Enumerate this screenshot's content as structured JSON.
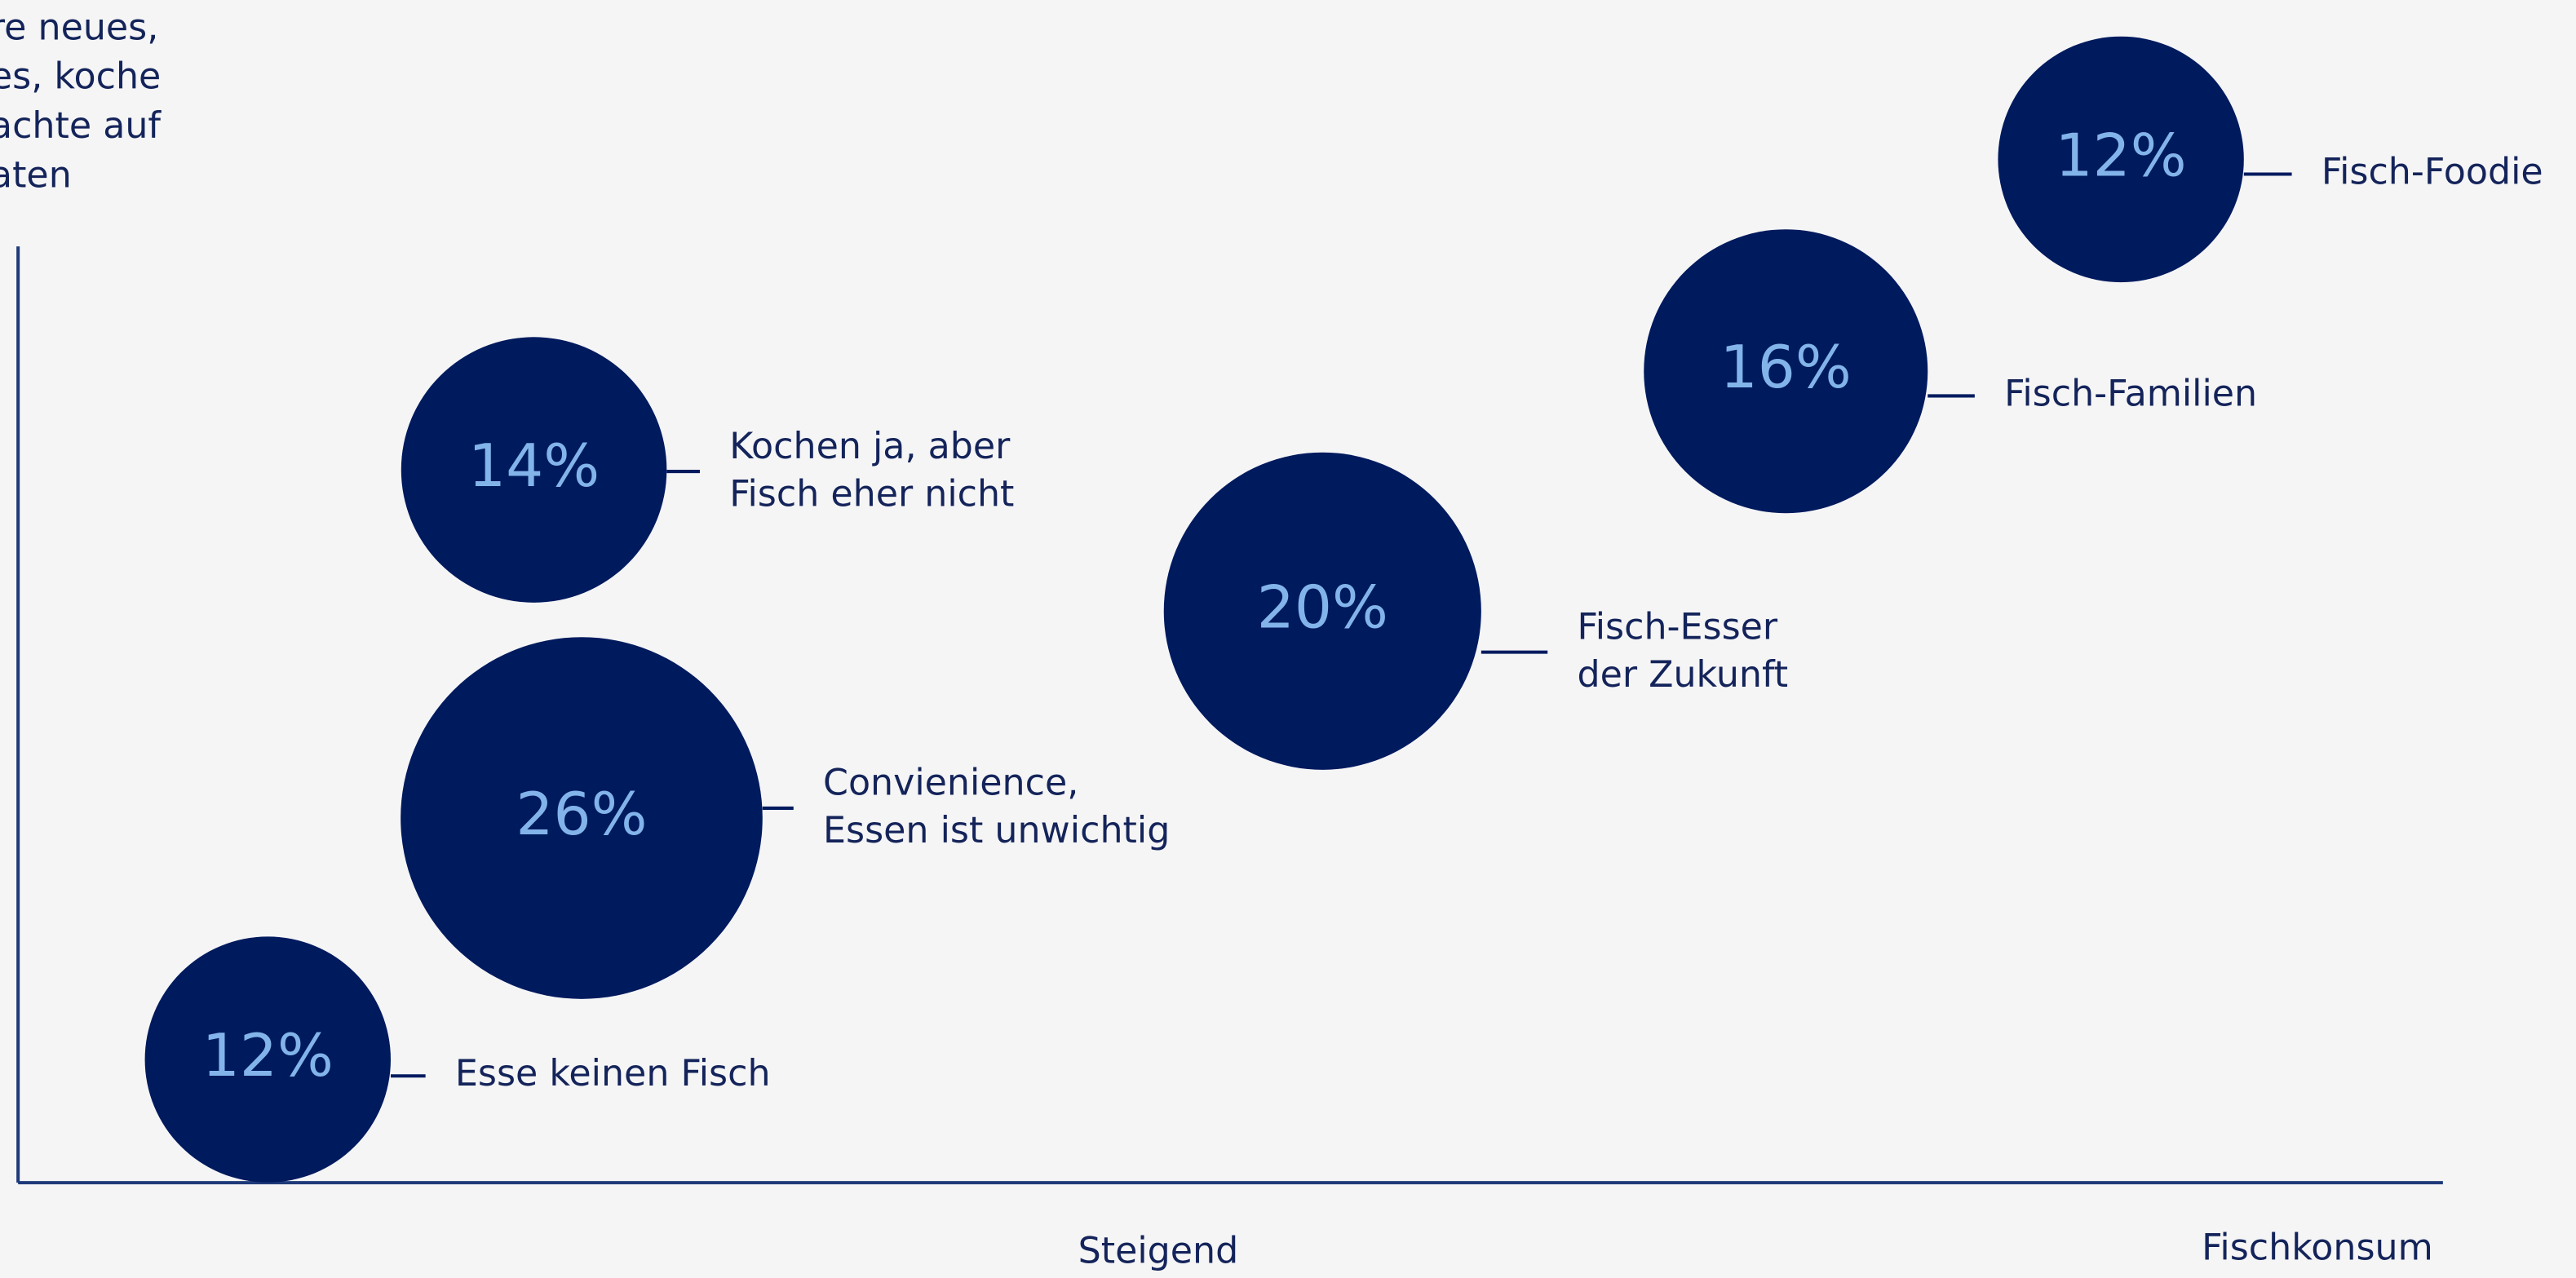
{
  "chart_data": {
    "type": "bubble",
    "corner_text": [
      "re neues,",
      "es, koche",
      "achte auf",
      "aten"
    ],
    "x_label_center": "Steigend",
    "x_label_end": "Fischkonsum",
    "color": "#001a5e",
    "series": [
      {
        "name": [
          "Esse keinen Fisch"
        ],
        "values": [
          12
        ],
        "value_labels": [
          "12%"
        ]
      },
      {
        "name": [
          "Convienience,",
          "Essen ist unwichtig"
        ],
        "values": [
          26
        ],
        "value_labels": [
          "26%"
        ]
      },
      {
        "name": [
          "Kochen ja, aber",
          "Fisch eher nicht"
        ],
        "values": [
          14
        ],
        "value_labels": [
          "14%"
        ]
      },
      {
        "name": [
          "Fisch-Esser",
          "der Zukunft"
        ],
        "values": [
          20
        ],
        "value_labels": [
          "20%"
        ]
      },
      {
        "name": [
          "Fisch-Familien"
        ],
        "values": [
          16
        ],
        "value_labels": [
          "16%"
        ]
      },
      {
        "name": [
          "Fisch-Foodie"
        ],
        "values": [
          12
        ],
        "value_labels": [
          "12%"
        ]
      }
    ]
  }
}
